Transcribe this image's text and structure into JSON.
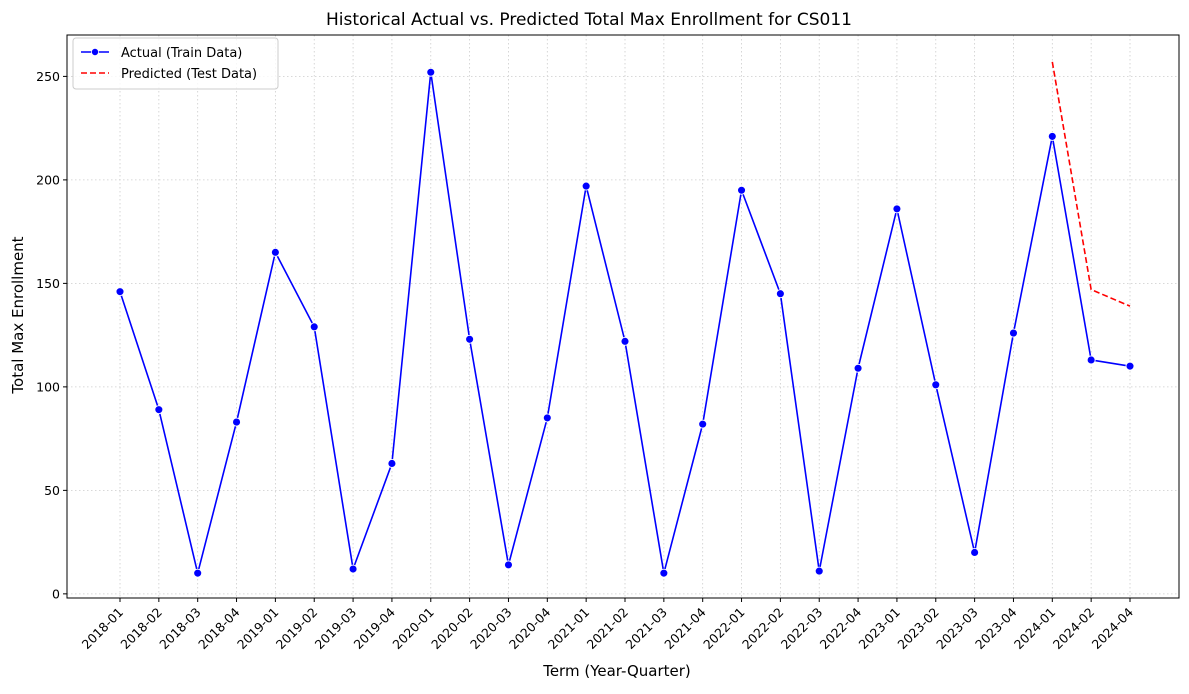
{
  "chart_data": {
    "type": "line",
    "title": "Historical Actual vs. Predicted Total Max Enrollment for CS011",
    "xlabel": "Term (Year-Quarter)",
    "ylabel": "Total Max Enrollment",
    "categories": [
      "2018-01",
      "2018-02",
      "2018-03",
      "2018-04",
      "2019-01",
      "2019-02",
      "2019-03",
      "2019-04",
      "2020-01",
      "2020-02",
      "2020-03",
      "2020-04",
      "2021-01",
      "2021-02",
      "2021-03",
      "2021-04",
      "2022-01",
      "2022-02",
      "2022-03",
      "2022-04",
      "2023-01",
      "2023-02",
      "2023-03",
      "2023-04",
      "2024-01",
      "2024-02",
      "2024-04"
    ],
    "ylim": [
      -2,
      270
    ],
    "yticks": [
      0,
      50,
      100,
      150,
      200,
      250
    ],
    "grid": true,
    "legend_position": "top-left",
    "series": [
      {
        "name": "Actual (Train Data)",
        "color": "#0000ff",
        "style": "solid",
        "marker": "circle",
        "values": [
          146,
          89,
          10,
          83,
          165,
          129,
          12,
          63,
          252,
          123,
          14,
          85,
          197,
          122,
          10,
          82,
          195,
          145,
          11,
          109,
          186,
          101,
          20,
          126,
          221,
          113,
          110
        ]
      },
      {
        "name": "Predicted (Test Data)",
        "color": "#ff0000",
        "style": "dashed",
        "marker": "none",
        "x": [
          "2024-01",
          "2024-02",
          "2024-04"
        ],
        "values": [
          257,
          147,
          139
        ]
      }
    ]
  }
}
